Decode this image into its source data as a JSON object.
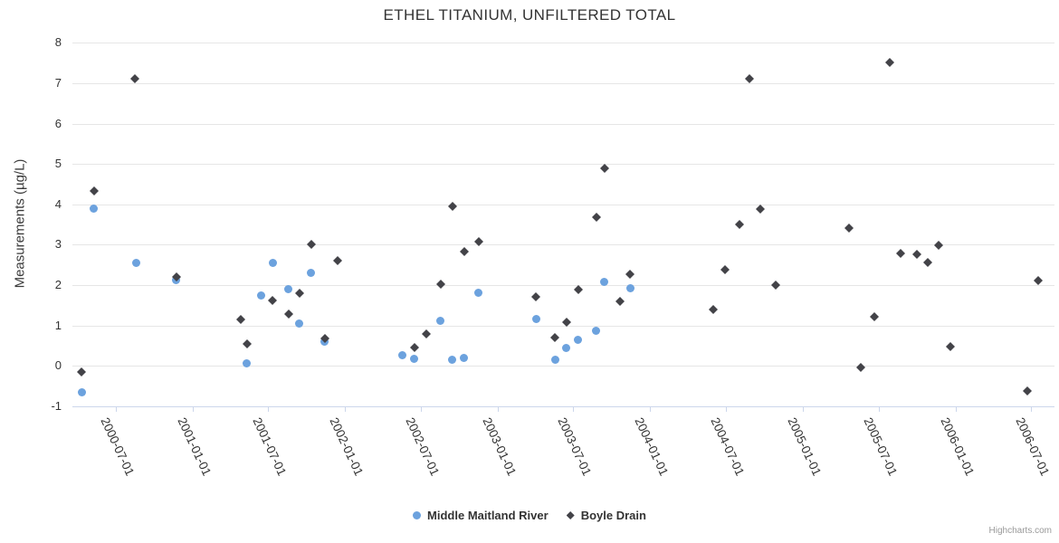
{
  "chart_data": {
    "type": "scatter",
    "title": "ETHEL TITANIUM, UNFILTERED TOTAL",
    "xlabel": "",
    "ylabel": "Measurements (µg/L)",
    "ylim": [
      -1,
      8
    ],
    "y_ticks": [
      8,
      7,
      6,
      5,
      4,
      3,
      2,
      1,
      0,
      -1
    ],
    "x_ticks": [
      "2000-07-01",
      "2001-01-01",
      "2001-07-01",
      "2002-01-01",
      "2002-07-01",
      "2003-01-01",
      "2003-07-01",
      "2004-01-01",
      "2004-07-01",
      "2005-01-01",
      "2005-07-01",
      "2006-01-01",
      "2006-07-01"
    ],
    "x_range": [
      "2000-03-20",
      "2006-08-26"
    ],
    "grid": "horizontal-only",
    "legend_position": "bottom-center",
    "credits": "Highcharts.com",
    "colors": {
      "middle_maitland_river": "#6CA2DE",
      "boyle_drain": "#434348",
      "gridline": "#e6e6e6",
      "axis": "#ccd6eb"
    },
    "series": [
      {
        "name": "Middle Maitland River",
        "marker": "circle",
        "color": "#6CA2DE",
        "points": [
          [
            "2000-04-12",
            -0.65
          ],
          [
            "2000-05-10",
            3.9
          ],
          [
            "2000-08-20",
            2.55
          ],
          [
            "2000-11-23",
            2.12
          ],
          [
            "2001-05-11",
            0.05
          ],
          [
            "2001-06-15",
            1.75
          ],
          [
            "2001-07-13",
            2.55
          ],
          [
            "2001-08-19",
            1.9
          ],
          [
            "2001-09-14",
            1.05
          ],
          [
            "2001-10-12",
            2.3
          ],
          [
            "2001-11-14",
            0.6
          ],
          [
            "2002-05-19",
            0.25
          ],
          [
            "2002-06-16",
            0.18
          ],
          [
            "2002-08-18",
            1.12
          ],
          [
            "2002-09-15",
            0.15
          ],
          [
            "2002-10-13",
            0.2
          ],
          [
            "2002-11-17",
            1.8
          ],
          [
            "2003-04-04",
            1.15
          ],
          [
            "2003-05-20",
            0.15
          ],
          [
            "2003-06-15",
            0.45
          ],
          [
            "2003-07-13",
            0.65
          ],
          [
            "2003-08-25",
            0.87
          ],
          [
            "2003-09-14",
            2.07
          ],
          [
            "2003-11-15",
            1.93
          ]
        ]
      },
      {
        "name": "Boyle Drain",
        "marker": "diamond",
        "color": "#434348",
        "points": [
          [
            "2000-04-10",
            -0.15
          ],
          [
            "2000-05-10",
            4.32
          ],
          [
            "2000-08-16",
            7.1
          ],
          [
            "2000-11-23",
            2.2
          ],
          [
            "2001-04-26",
            1.15
          ],
          [
            "2001-05-11",
            0.53
          ],
          [
            "2001-07-11",
            1.62
          ],
          [
            "2001-08-19",
            1.27
          ],
          [
            "2001-09-14",
            1.8
          ],
          [
            "2001-10-12",
            3.0
          ],
          [
            "2001-11-14",
            0.67
          ],
          [
            "2001-12-14",
            2.6
          ],
          [
            "2002-06-16",
            0.45
          ],
          [
            "2002-07-14",
            0.78
          ],
          [
            "2002-08-18",
            2.03
          ],
          [
            "2002-09-15",
            3.95
          ],
          [
            "2002-10-13",
            2.83
          ],
          [
            "2002-11-17",
            3.07
          ],
          [
            "2003-04-04",
            1.7
          ],
          [
            "2003-05-18",
            0.7
          ],
          [
            "2003-06-15",
            1.07
          ],
          [
            "2003-07-13",
            1.88
          ],
          [
            "2003-08-25",
            3.68
          ],
          [
            "2003-09-14",
            4.88
          ],
          [
            "2003-10-21",
            1.6
          ],
          [
            "2003-11-15",
            2.27
          ],
          [
            "2004-05-31",
            1.4
          ],
          [
            "2004-06-28",
            2.38
          ],
          [
            "2004-08-02",
            3.5
          ],
          [
            "2004-08-26",
            7.1
          ],
          [
            "2004-09-21",
            3.88
          ],
          [
            "2004-10-28",
            2.0
          ],
          [
            "2005-04-21",
            3.4
          ],
          [
            "2005-05-19",
            -0.05
          ],
          [
            "2005-06-22",
            1.22
          ],
          [
            "2005-07-27",
            7.52
          ],
          [
            "2005-08-22",
            2.78
          ],
          [
            "2005-09-30",
            2.75
          ],
          [
            "2005-10-26",
            2.55
          ],
          [
            "2005-11-21",
            2.98
          ],
          [
            "2005-12-21",
            0.48
          ],
          [
            "2006-06-23",
            -0.62
          ],
          [
            "2006-07-19",
            2.1
          ]
        ]
      }
    ]
  }
}
